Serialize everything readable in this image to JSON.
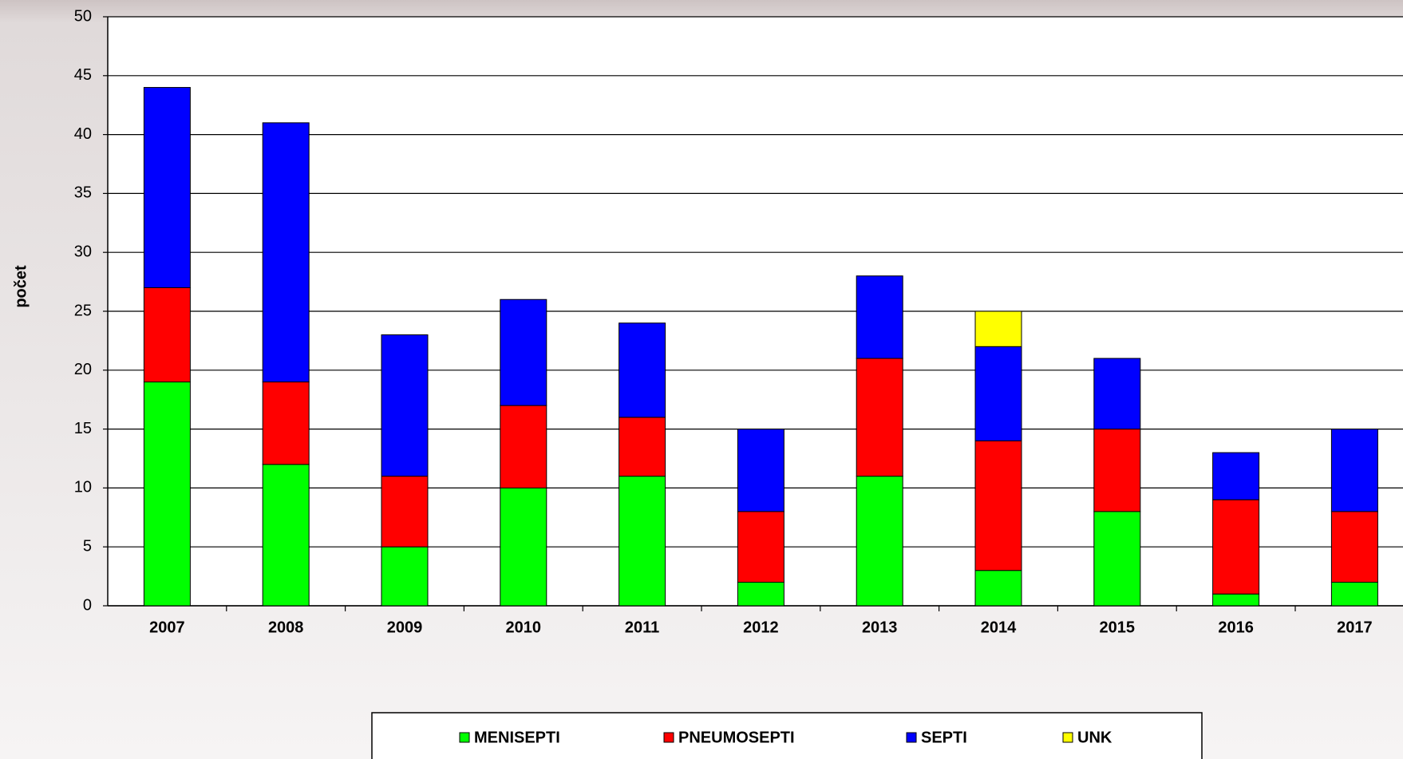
{
  "chart_data": {
    "type": "stacked-bar",
    "y_label": "počet",
    "categories": [
      "2007",
      "2008",
      "2009",
      "2010",
      "2011",
      "2012",
      "2013",
      "2014",
      "2015",
      "2016",
      "2017"
    ],
    "series": [
      {
        "name": "MENISEPTI",
        "color": "#00ff00",
        "values": [
          19,
          12,
          5,
          10,
          11,
          2,
          11,
          3,
          8,
          1,
          2
        ]
      },
      {
        "name": "PNEUMOSEPTI",
        "color": "#ff0000",
        "values": [
          8,
          7,
          6,
          7,
          5,
          6,
          10,
          11,
          7,
          8,
          6
        ]
      },
      {
        "name": "SEPTI",
        "color": "#0000ff",
        "values": [
          17,
          22,
          12,
          9,
          8,
          7,
          7,
          8,
          6,
          4,
          7
        ]
      },
      {
        "name": "UNK",
        "color": "#ffff00",
        "values": [
          0,
          0,
          0,
          0,
          0,
          0,
          0,
          3,
          0,
          0,
          0
        ]
      }
    ],
    "ylim": [
      0,
      50
    ],
    "yticks": [
      0,
      5,
      10,
      15,
      20,
      25,
      30,
      35,
      40,
      45,
      50
    ],
    "grid": true,
    "legend": "bottom"
  }
}
